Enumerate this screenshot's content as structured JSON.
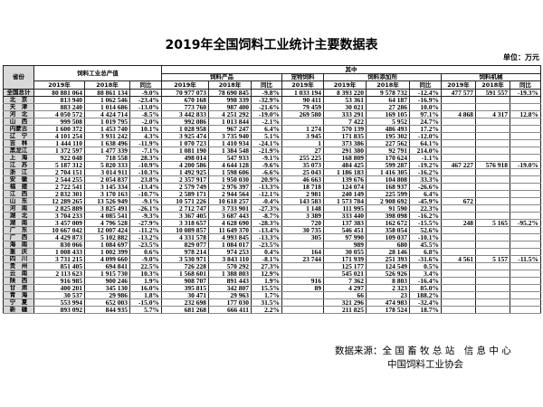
{
  "title": "2019年全国饲料工业统计主要数据表",
  "unit": "单位：万元",
  "header": {
    "province": "省份",
    "total_value": "饲料工业总产值",
    "of_which": "其中",
    "feed_products": "饲料产品",
    "pet_food": "宠物饲料",
    "feed_additives": "饲料添加剂",
    "feed_machinery": "饲料机械",
    "y2019": "2019年",
    "y2018": "2018年",
    "yoy": "同比"
  },
  "rows": [
    [
      "全国总计",
      "80 881 064",
      "88 861 134",
      "-9.0%",
      "70 977 073",
      "78 690 845",
      "-9.8%",
      "1 033 194",
      "8 393 220",
      "9 578 732",
      "-12.4%",
      "477 577",
      "591 557",
      "-19.3%"
    ],
    [
      "北　京",
      "813 940",
      "1 062 546",
      "-23.4%",
      "670 168",
      "998 339",
      "-32.9%",
      "90 411",
      "53 361",
      "64 187",
      "-16.9%",
      "",
      "",
      ""
    ],
    [
      "天　津",
      "883 240",
      "1 014 686",
      "-13.0%",
      "773 760",
      "987 400",
      "-21.6%",
      "79 459",
      "30 021",
      "27 286",
      "10.0%",
      "",
      "",
      ""
    ],
    [
      "河　北",
      "4 050 572",
      "4 424 714",
      "-8.5%",
      "3 442 833",
      "4 251 292",
      "-19.0%",
      "269 580",
      "333 291",
      "169 105",
      "97.1%",
      "4 868",
      "4 317",
      "12.8%"
    ],
    [
      "山　西",
      "999 508",
      "1 019 795",
      "-2.0%",
      "992 086",
      "1 013 844",
      "-2.1%",
      "",
      "7 422",
      "5 952",
      "24.7%",
      "",
      "",
      ""
    ],
    [
      "内蒙古",
      "1 600 372",
      "1 453 740",
      "10.1%",
      "1 028 958",
      "967 247",
      "6.4%",
      "1 274",
      "570 139",
      "486 493",
      "17.2%",
      "",
      "",
      ""
    ],
    [
      "辽　宁",
      "4 101 254",
      "3 931 242",
      "4.3%",
      "3 925 474",
      "3 735 940",
      "5.1%",
      "3 945",
      "171 835",
      "195 302",
      "-12.0%",
      "",
      "",
      ""
    ],
    [
      "吉　林",
      "1 444 110",
      "1 638 496",
      "-11.9%",
      "1 070 723",
      "1 410 934",
      "-24.1%",
      "1",
      "373 386",
      "227 562",
      "64.1%",
      "",
      "",
      ""
    ],
    [
      "黑龙江",
      "1 372 597",
      "1 477 339",
      "-7.1%",
      "1 081 190",
      "1 384 548",
      "-21.9%",
      "27",
      "291 380",
      "92 791",
      "214.0%",
      "",
      "",
      ""
    ],
    [
      "上　海",
      "922 048",
      "718 558",
      "28.3%",
      "498 014",
      "547 933",
      "-9.1%",
      "255 225",
      "168 809",
      "170 624",
      "-1.1%",
      "",
      "",
      ""
    ],
    [
      "江　苏",
      "5 187 312",
      "5 820 333",
      "-10.9%",
      "4 200 586",
      "4 644 128",
      "-9.6%",
      "35 073",
      "484 425",
      "599 287",
      "-19.2%",
      "467 227",
      "576 918",
      "-19.0%"
    ],
    [
      "浙　江",
      "2 704 151",
      "3 014 911",
      "-10.3%",
      "1 492 925",
      "1 598 606",
      "-6.6%",
      "25 043",
      "1 186 183",
      "1 416 305",
      "-16.2%",
      "",
      "",
      ""
    ],
    [
      "安　徽",
      "2 544 255",
      "2 054 837",
      "23.8%",
      "2 357 917",
      "1 950 030",
      "20.9%",
      "46 663",
      "139 676",
      "104 808",
      "33.3%",
      "",
      "",
      ""
    ],
    [
      "福　建",
      "2 722 541",
      "3 145 334",
      "-13.4%",
      "2 579 749",
      "2 976 397",
      "-13.3%",
      "18 718",
      "124 074",
      "168 937",
      "-26.6%",
      "",
      "",
      ""
    ],
    [
      "江　西",
      "2 832 301",
      "3 170 163",
      "-10.7%",
      "2 589 171",
      "2 944 564",
      "-12.1%",
      "2 981",
      "240 149",
      "225 599",
      "6.4%",
      "",
      "",
      ""
    ],
    [
      "山　东",
      "12 289 265",
      "13 526 949",
      "-9.1%",
      "10 571 226",
      "10 618 257",
      "-0.4%",
      "143 583",
      "1 573 784",
      "2 908 692",
      "-45.9%",
      "672",
      "",
      ""
    ],
    [
      "河　南",
      "2 825 889",
      "3 825 491",
      "-26.1%",
      "2 712 747",
      "3 733 901",
      "-27.3%",
      "1 148",
      "111 995",
      "91 590",
      "22.3%",
      "",
      "",
      ""
    ],
    [
      "湖　北",
      "3 704 233",
      "4 085 541",
      "-9.3%",
      "3 367 405",
      "3 687 443",
      "-8.7%",
      "3 389",
      "333 440",
      "398 098",
      "-16.2%",
      "",
      "",
      ""
    ],
    [
      "湖　南",
      "3 457 009",
      "4 796 528",
      "-27.9%",
      "3 318 657",
      "4 628 690",
      "-28.3%",
      "720",
      "137 383",
      "162 672",
      "-15.5%",
      "248",
      "5 165",
      "-95.2%"
    ],
    [
      "广　东",
      "10 667 042",
      "12 007 424",
      "-11.2%",
      "10 089 857",
      "11 649 370",
      "-13.4%",
      "30 735",
      "546 451",
      "358 054",
      "52.6%",
      "",
      "",
      ""
    ],
    [
      "广　西",
      "4 429 873",
      "5 102 882",
      "-13.2%",
      "4 331 578",
      "4 993 845",
      "-13.3%",
      "305",
      "97 990",
      "109 037",
      "-10.1%",
      "",
      "",
      ""
    ],
    [
      "海　南",
      "830 066",
      "1 084 697",
      "-23.5%",
      "829 077",
      "1 084 017",
      "-23.5%",
      "",
      "989",
      "680",
      "45.5%",
      "",
      "",
      ""
    ],
    [
      "重　庆",
      "1 008 433",
      "1 002 399",
      "0.6%",
      "978 214",
      "974 253",
      "0.4%",
      "164",
      "30 055",
      "28 146",
      "6.8%",
      "",
      "",
      ""
    ],
    [
      "四　川",
      "3 731 215",
      "4 099 660",
      "-9.0%",
      "3 530 971",
      "3 843 110",
      "-8.1%",
      "23 744",
      "171 939",
      "251 393",
      "-31.6%",
      "4 561",
      "5 157",
      "-11.5%"
    ],
    [
      "贵　州",
      "851 405",
      "694 841",
      "22.5%",
      "726 228",
      "570 292",
      "27.3%",
      "",
      "125 177",
      "124 549",
      "0.5%",
      "",
      "",
      ""
    ],
    [
      "云　南",
      "2 113 623",
      "1 915 730",
      "10.3%",
      "1 568 601",
      "1 388 803",
      "12.9%",
      "",
      "545 021",
      "526 926",
      "3.4%",
      "",
      "",
      ""
    ],
    [
      "陕　西",
      "916 985",
      "900 246",
      "1.9%",
      "908 707",
      "891 443",
      "1.9%",
      "916",
      "7 362",
      "8 803",
      "-16.4%",
      "",
      "",
      ""
    ],
    [
      "甘　肃",
      "400 201",
      "345 130",
      "16.0%",
      "395 815",
      "342 807",
      "15.5%",
      "89",
      "4 297",
      "2 323",
      "85.0%",
      "",
      "",
      ""
    ],
    [
      "青　海",
      "30 537",
      "29 986",
      "1.8%",
      "30 471",
      "29 963",
      "1.7%",
      "",
      "66",
      "23",
      "188.2%",
      "",
      "",
      ""
    ],
    [
      "宁　夏",
      "553 994",
      "652 003",
      "-15.0%",
      "232 698",
      "177 030",
      "31.5%",
      "",
      "321 296",
      "474 983",
      "-32.4%",
      "",
      "",
      ""
    ],
    [
      "新　疆",
      "893 092",
      "844 935",
      "5.7%",
      "681 268",
      "666 411",
      "2.2%",
      "",
      "211 825",
      "178 524",
      "18.7%",
      "",
      "",
      ""
    ]
  ],
  "footer": {
    "source_line1": "数据来源：全 国 畜 牧 总 站　信 息 中 心",
    "source_line2": "中国饲料工业协会"
  }
}
